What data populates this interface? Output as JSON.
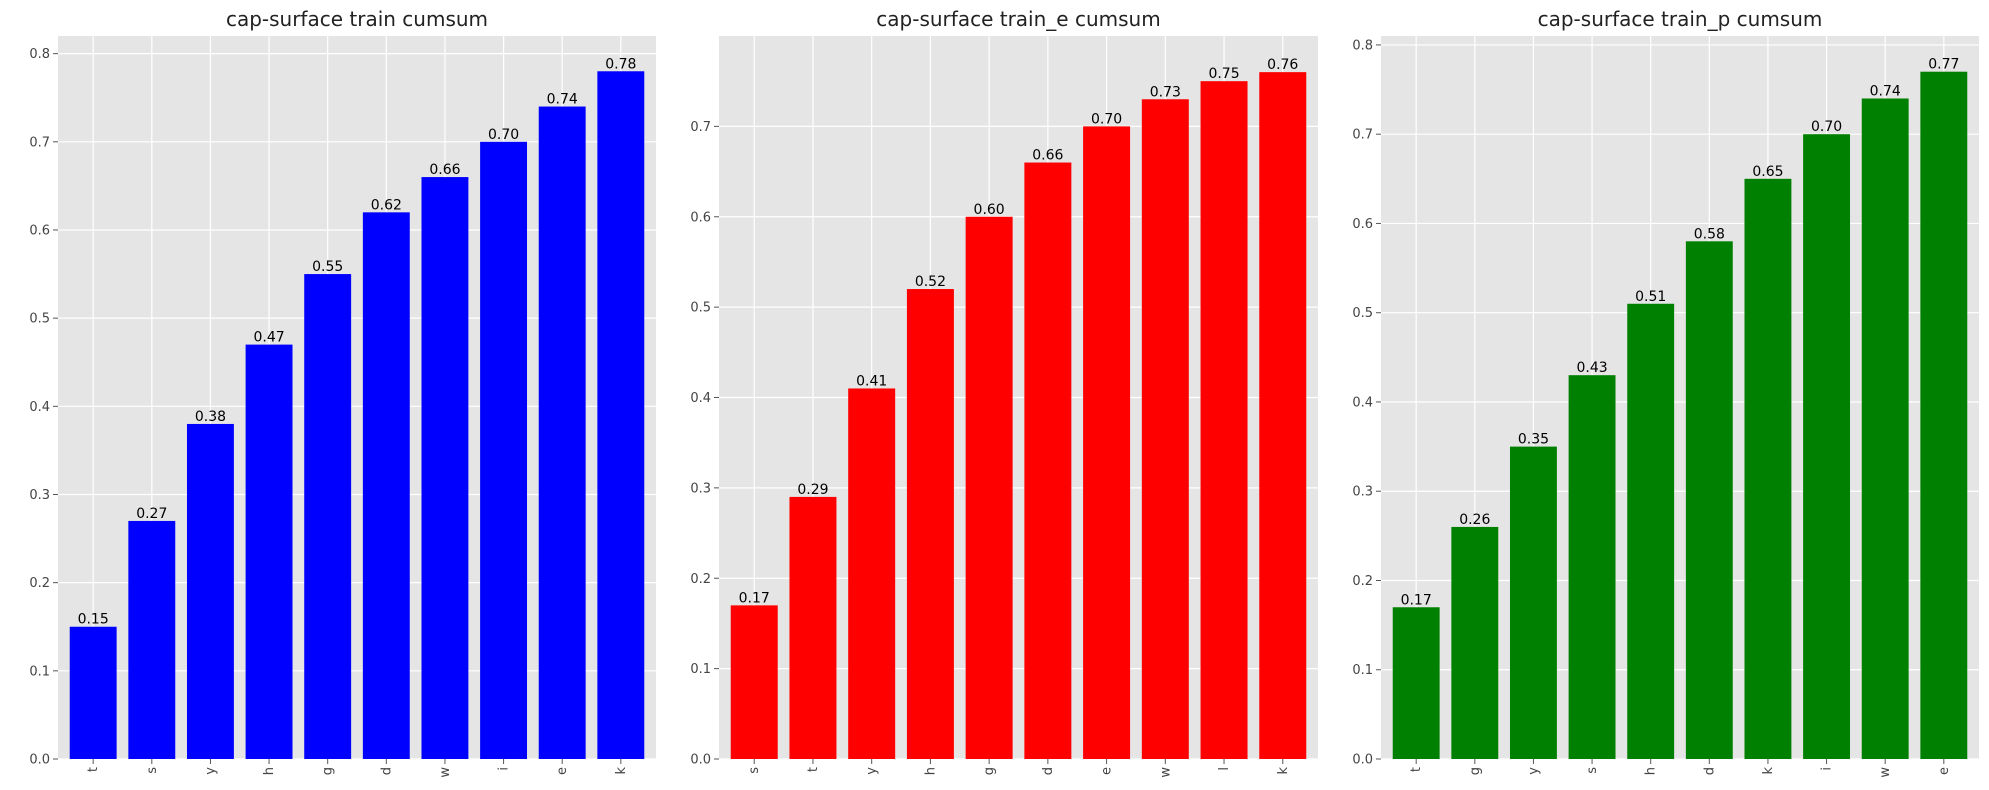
{
  "chart_data": [
    {
      "type": "bar",
      "title": "cap-surface train cumsum",
      "categories": [
        "t",
        "s",
        "y",
        "h",
        "g",
        "d",
        "w",
        "i",
        "e",
        "k"
      ],
      "values": [
        0.15,
        0.27,
        0.38,
        0.47,
        0.55,
        0.62,
        0.66,
        0.7,
        0.74,
        0.78
      ],
      "value_labels": [
        "0.15",
        "0.27",
        "0.38",
        "0.47",
        "0.55",
        "0.62",
        "0.66",
        "0.70",
        "0.74",
        "0.78"
      ],
      "color": "#0000ff",
      "ylim": [
        0,
        0.82
      ],
      "yticks": [
        0.0,
        0.1,
        0.2,
        0.3,
        0.4,
        0.5,
        0.6,
        0.7,
        0.8
      ],
      "ytick_labels": [
        "0.0",
        "0.1",
        "0.2",
        "0.3",
        "0.4",
        "0.5",
        "0.6",
        "0.7",
        "0.8"
      ],
      "xlabel": "",
      "ylabel": "",
      "grid": true
    },
    {
      "type": "bar",
      "title": "cap-surface train_e cumsum",
      "categories": [
        "s",
        "t",
        "y",
        "h",
        "g",
        "d",
        "e",
        "w",
        "l",
        "k"
      ],
      "values": [
        0.17,
        0.29,
        0.41,
        0.52,
        0.6,
        0.66,
        0.7,
        0.73,
        0.75,
        0.76
      ],
      "value_labels": [
        "0.17",
        "0.29",
        "0.41",
        "0.52",
        "0.60",
        "0.66",
        "0.70",
        "0.73",
        "0.75",
        "0.76"
      ],
      "color": "#ff0000",
      "ylim": [
        0,
        0.8
      ],
      "yticks": [
        0.0,
        0.1,
        0.2,
        0.3,
        0.4,
        0.5,
        0.6,
        0.7
      ],
      "ytick_labels": [
        "0.0",
        "0.1",
        "0.2",
        "0.3",
        "0.4",
        "0.5",
        "0.6",
        "0.7"
      ],
      "xlabel": "",
      "ylabel": "",
      "grid": true
    },
    {
      "type": "bar",
      "title": "cap-surface train_p cumsum",
      "categories": [
        "t",
        "g",
        "y",
        "s",
        "h",
        "d",
        "k",
        "i",
        "w",
        "e"
      ],
      "values": [
        0.17,
        0.26,
        0.35,
        0.43,
        0.51,
        0.58,
        0.65,
        0.7,
        0.74,
        0.77
      ],
      "value_labels": [
        "0.17",
        "0.26",
        "0.35",
        "0.43",
        "0.51",
        "0.58",
        "0.65",
        "0.70",
        "0.74",
        "0.77"
      ],
      "color": "#008000",
      "ylim": [
        0,
        0.81
      ],
      "yticks": [
        0.0,
        0.1,
        0.2,
        0.3,
        0.4,
        0.5,
        0.6,
        0.7,
        0.8
      ],
      "ytick_labels": [
        "0.0",
        "0.1",
        "0.2",
        "0.3",
        "0.4",
        "0.5",
        "0.6",
        "0.7",
        "0.8"
      ],
      "xlabel": "",
      "ylabel": "",
      "grid": true
    }
  ]
}
